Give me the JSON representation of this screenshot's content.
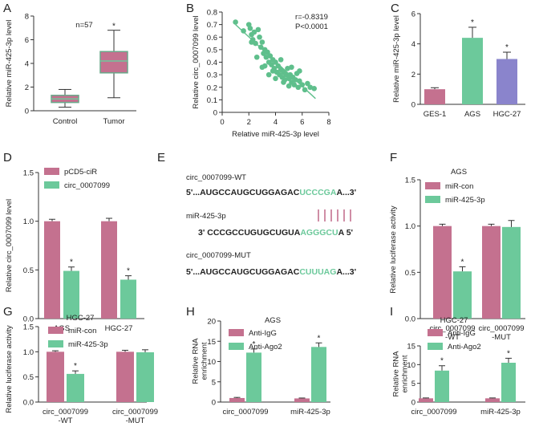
{
  "colors": {
    "pink": "#c4718f",
    "green": "#6cc99b",
    "purple": "#8a84cc",
    "axis": "#333333",
    "scatter": "#5fbf8c"
  },
  "panels": {
    "A": {
      "letter": "A",
      "type": "box",
      "annotation": "n=57",
      "ylabel": "Relative miR-425-3p level",
      "ylim": [
        0,
        8
      ],
      "yticks": [
        "0",
        "2",
        "4",
        "6",
        "8"
      ],
      "categories": [
        "Control",
        "Tumor"
      ],
      "boxes": [
        {
          "name": "Control",
          "min": 0.3,
          "q1": 0.7,
          "median": 1.0,
          "q3": 1.3,
          "max": 1.8,
          "color": "#c4718f",
          "star": ""
        },
        {
          "name": "Tumor",
          "min": 1.1,
          "q1": 3.2,
          "median": 4.2,
          "q3": 5.0,
          "max": 6.8,
          "color": "#c4718f",
          "star": "*"
        }
      ]
    },
    "B": {
      "letter": "B",
      "type": "scatter",
      "stats": [
        "r=-0.8319",
        "P<0.0001"
      ],
      "xlabel": "Relative miR-425-3p level",
      "ylabel": "Relative circ_0007099 level",
      "xlim": [
        0,
        8
      ],
      "ylim": [
        0,
        0.8
      ],
      "xticks": [
        "0",
        "2",
        "4",
        "6",
        "8"
      ],
      "yticks": [
        "0",
        "0.1",
        "0.2",
        "0.3",
        "0.4",
        "0.5",
        "0.6",
        "0.7",
        "0.8"
      ],
      "points": [
        [
          1.0,
          0.72
        ],
        [
          1.6,
          0.65
        ],
        [
          2.0,
          0.7
        ],
        [
          2.1,
          0.67
        ],
        [
          2.2,
          0.62
        ],
        [
          2.3,
          0.58
        ],
        [
          2.4,
          0.64
        ],
        [
          2.5,
          0.55
        ],
        [
          2.7,
          0.66
        ],
        [
          2.8,
          0.6
        ],
        [
          2.9,
          0.52
        ],
        [
          3.0,
          0.56
        ],
        [
          3.1,
          0.47
        ],
        [
          3.2,
          0.5
        ],
        [
          3.3,
          0.44
        ],
        [
          3.4,
          0.48
        ],
        [
          3.5,
          0.4
        ],
        [
          3.6,
          0.45
        ],
        [
          3.7,
          0.38
        ],
        [
          3.8,
          0.42
        ],
        [
          3.9,
          0.35
        ],
        [
          4.0,
          0.4
        ],
        [
          4.1,
          0.32
        ],
        [
          4.2,
          0.37
        ],
        [
          4.3,
          0.3
        ],
        [
          4.4,
          0.34
        ],
        [
          4.5,
          0.28
        ],
        [
          4.6,
          0.32
        ],
        [
          4.7,
          0.26
        ],
        [
          4.8,
          0.3
        ],
        [
          4.9,
          0.35
        ],
        [
          5.0,
          0.27
        ],
        [
          5.1,
          0.3
        ],
        [
          5.2,
          0.24
        ],
        [
          5.3,
          0.28
        ],
        [
          5.4,
          0.22
        ],
        [
          5.5,
          0.26
        ],
        [
          5.6,
          0.31
        ],
        [
          5.7,
          0.2
        ],
        [
          5.8,
          0.25
        ],
        [
          6.0,
          0.22
        ],
        [
          6.2,
          0.18
        ],
        [
          6.4,
          0.23
        ],
        [
          6.6,
          0.2
        ],
        [
          6.9,
          0.19
        ],
        [
          3.2,
          0.37
        ],
        [
          3.5,
          0.3
        ],
        [
          4.0,
          0.27
        ],
        [
          4.6,
          0.24
        ],
        [
          5.2,
          0.36
        ],
        [
          2.6,
          0.44
        ],
        [
          3.8,
          0.33
        ],
        [
          4.4,
          0.42
        ],
        [
          5.0,
          0.21
        ],
        [
          5.8,
          0.33
        ],
        [
          2.2,
          0.56
        ],
        [
          3.0,
          0.36
        ]
      ],
      "fit": {
        "x": [
          1.0,
          7.0
        ],
        "y": [
          0.7,
          0.11
        ]
      }
    },
    "C": {
      "letter": "C",
      "type": "bar",
      "ylabel": "Relative miR-425-3p level",
      "ylim": [
        0,
        6
      ],
      "yticks": [
        "0",
        "2",
        "4",
        "6"
      ],
      "categories": [
        "GES-1",
        "AGS",
        "HGC-27"
      ],
      "values": [
        1.0,
        4.4,
        3.0
      ],
      "errors": [
        0.1,
        0.7,
        0.45
      ],
      "colors": [
        "#c4718f",
        "#6cc99b",
        "#8a84cc"
      ],
      "stars": [
        "",
        "*",
        "*"
      ]
    },
    "D": {
      "letter": "D",
      "type": "grouped-bar",
      "ylabel": "Relative circ_0007099 level",
      "ylim": [
        0,
        1.5
      ],
      "yticks": [
        "0.0",
        "0.5",
        "1.0",
        "1.5"
      ],
      "categories": [
        "AGS",
        "HGC-27"
      ],
      "series": [
        {
          "name": "pCD5-ciR",
          "color": "#c4718f",
          "values": [
            1.0,
            1.0
          ],
          "errors": [
            0.02,
            0.03
          ],
          "stars": [
            "",
            ""
          ]
        },
        {
          "name": "circ_0007099",
          "color": "#6cc99b",
          "values": [
            0.49,
            0.4
          ],
          "errors": [
            0.04,
            0.04
          ],
          "stars": [
            "*",
            "*"
          ]
        }
      ]
    },
    "E": {
      "letter": "E",
      "wt_label": "circ_0007099-WT",
      "wt_prefix": "5'...AUGCCAUGCUGGAGAC",
      "wt_site": "UCCCGA",
      "wt_suffix": "A...3'",
      "mir_label": "miR-425-3p",
      "mir_prefix": "3' CCCGCCUGUGCUGUA",
      "mir_site": "AGGGCU",
      "mir_suffix": "A  5'",
      "mut_label": "circ_0007099-MUT",
      "mut_prefix": "5'...AUGCCAUGCUGGAGAC",
      "mut_site": "CUUUAG",
      "mut_suffix": "A...3'"
    },
    "F": {
      "letter": "F",
      "type": "grouped-bar",
      "title": "AGS",
      "ylabel": "Relative luciferase activity",
      "ylim": [
        0,
        1.5
      ],
      "yticks": [
        "0.0",
        "0.5",
        "1.0",
        "1.5"
      ],
      "categories": [
        "circ_0007099\n-WT",
        "circ_0007099\n-MUT"
      ],
      "series": [
        {
          "name": "miR-con",
          "color": "#c4718f",
          "values": [
            1.0,
            1.0
          ],
          "errors": [
            0.02,
            0.02
          ],
          "stars": [
            "",
            ""
          ]
        },
        {
          "name": "miR-425-3p",
          "color": "#6cc99b",
          "values": [
            0.51,
            0.99
          ],
          "errors": [
            0.05,
            0.07
          ],
          "stars": [
            "*",
            ""
          ]
        }
      ]
    },
    "G": {
      "letter": "G",
      "type": "grouped-bar",
      "title": "HGC-27",
      "ylabel": "Relative luciferase activity",
      "ylim": [
        0,
        1.5
      ],
      "yticks": [
        "0.0",
        "0.5",
        "1.0",
        "1.5"
      ],
      "categories": [
        "circ_0007099\n-WT",
        "circ_0007099\n-MUT"
      ],
      "series": [
        {
          "name": "miR-con",
          "color": "#c4718f",
          "values": [
            1.0,
            1.0
          ],
          "errors": [
            0.02,
            0.03
          ],
          "stars": [
            "",
            ""
          ]
        },
        {
          "name": "miR-425-3p",
          "color": "#6cc99b",
          "values": [
            0.56,
            0.99
          ],
          "errors": [
            0.06,
            0.05
          ],
          "stars": [
            "*",
            ""
          ]
        }
      ]
    },
    "H": {
      "letter": "H",
      "type": "grouped-bar",
      "title": "AGS",
      "ylabel": "Relative RNA\nenrichment",
      "ylim": [
        0,
        20
      ],
      "yticks": [
        "0",
        "5",
        "10",
        "15",
        "20"
      ],
      "categories": [
        "circ_0007099",
        "miR-425-3p"
      ],
      "series": [
        {
          "name": "Anti-IgG",
          "color": "#c4718f",
          "values": [
            1.0,
            0.9
          ],
          "errors": [
            0.15,
            0.1
          ],
          "stars": [
            "",
            ""
          ]
        },
        {
          "name": "Anti-Ago2",
          "color": "#6cc99b",
          "values": [
            12.2,
            13.6
          ],
          "errors": [
            0.9,
            1.0
          ],
          "stars": [
            "*",
            "*"
          ]
        }
      ]
    },
    "I": {
      "letter": "I",
      "type": "grouped-bar",
      "title": "HGC-27",
      "ylabel": "Relative RNA\nenrichment",
      "ylim": [
        0,
        15
      ],
      "yticks": [
        "0",
        "5",
        "10",
        "15"
      ],
      "categories": [
        "circ_0007099",
        "miR-425-3p"
      ],
      "series": [
        {
          "name": "Anti-IgG",
          "color": "#c4718f",
          "values": [
            1.0,
            1.0
          ],
          "errors": [
            0.1,
            0.1
          ],
          "stars": [
            "",
            ""
          ]
        },
        {
          "name": "Anti-Ago2",
          "color": "#6cc99b",
          "values": [
            8.4,
            10.5
          ],
          "errors": [
            1.3,
            1.2
          ],
          "stars": [
            "*",
            "*"
          ]
        }
      ]
    }
  },
  "chart_data": [
    {
      "panel": "A",
      "type": "box",
      "categories": [
        "Control",
        "Tumor"
      ],
      "annotation": "n=57",
      "ylabel": "Relative miR-425-3p level",
      "ylim": [
        0,
        8
      ],
      "series": [
        {
          "name": "Control",
          "min": 0.3,
          "q1": 0.7,
          "median": 1.0,
          "q3": 1.3,
          "max": 1.8
        },
        {
          "name": "Tumor",
          "min": 1.1,
          "q1": 3.2,
          "median": 4.2,
          "q3": 5.0,
          "max": 6.8
        }
      ]
    },
    {
      "panel": "B",
      "type": "scatter",
      "xlabel": "Relative miR-425-3p level",
      "ylabel": "Relative circ_0007099 level",
      "xlim": [
        0,
        8
      ],
      "ylim": [
        0,
        0.8
      ],
      "annotation": "r=-0.8319, P<0.0001"
    },
    {
      "panel": "C",
      "type": "bar",
      "categories": [
        "GES-1",
        "AGS",
        "HGC-27"
      ],
      "values": [
        1.0,
        4.4,
        3.0
      ],
      "ylabel": "Relative miR-425-3p level",
      "ylim": [
        0,
        6
      ]
    },
    {
      "panel": "D",
      "type": "bar",
      "categories": [
        "AGS",
        "HGC-27"
      ],
      "series": [
        {
          "name": "pCD5-ciR",
          "values": [
            1.0,
            1.0
          ]
        },
        {
          "name": "circ_0007099",
          "values": [
            0.49,
            0.4
          ]
        }
      ],
      "ylabel": "Relative circ_0007099 level",
      "ylim": [
        0,
        1.5
      ]
    },
    {
      "panel": "F",
      "type": "bar",
      "title": "AGS",
      "categories": [
        "circ_0007099 -WT",
        "circ_0007099 -MUT"
      ],
      "series": [
        {
          "name": "miR-con",
          "values": [
            1.0,
            1.0
          ]
        },
        {
          "name": "miR-425-3p",
          "values": [
            0.51,
            0.99
          ]
        }
      ],
      "ylabel": "Relative luciferase activity",
      "ylim": [
        0,
        1.5
      ]
    },
    {
      "panel": "G",
      "type": "bar",
      "title": "HGC-27",
      "categories": [
        "circ_0007099 -WT",
        "circ_0007099 -MUT"
      ],
      "series": [
        {
          "name": "miR-con",
          "values": [
            1.0,
            1.0
          ]
        },
        {
          "name": "miR-425-3p",
          "values": [
            0.56,
            0.99
          ]
        }
      ],
      "ylabel": "Relative luciferase activity",
      "ylim": [
        0,
        1.5
      ]
    },
    {
      "panel": "H",
      "type": "bar",
      "title": "AGS",
      "categories": [
        "circ_0007099",
        "miR-425-3p"
      ],
      "series": [
        {
          "name": "Anti-IgG",
          "values": [
            1.0,
            0.9
          ]
        },
        {
          "name": "Anti-Ago2",
          "values": [
            12.2,
            13.6
          ]
        }
      ],
      "ylabel": "Relative RNA enrichment",
      "ylim": [
        0,
        20
      ]
    },
    {
      "panel": "I",
      "type": "bar",
      "title": "HGC-27",
      "categories": [
        "circ_0007099",
        "miR-425-3p"
      ],
      "series": [
        {
          "name": "Anti-IgG",
          "values": [
            1.0,
            1.0
          ]
        },
        {
          "name": "Anti-Ago2",
          "values": [
            8.4,
            10.5
          ]
        }
      ],
      "ylabel": "Relative RNA enrichment",
      "ylim": [
        0,
        15
      ]
    }
  ]
}
